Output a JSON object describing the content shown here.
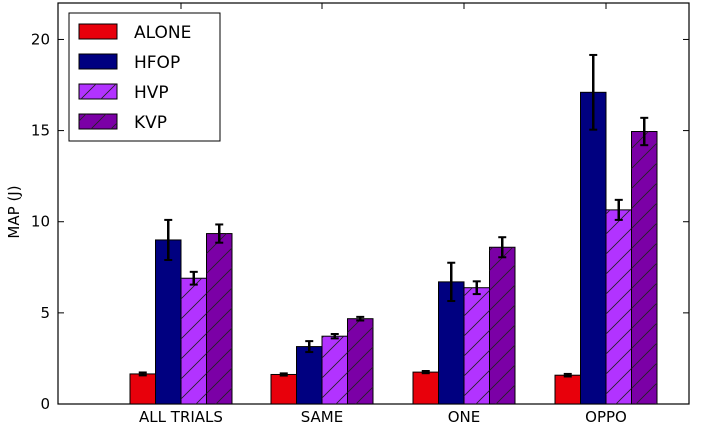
{
  "chart_data": {
    "type": "bar",
    "title": "",
    "xlabel": "",
    "ylabel": "MAP (J)",
    "categories": [
      "ALL TRIALS",
      "SAME",
      "ONE",
      "OPPO"
    ],
    "ylim": [
      0,
      22
    ],
    "yticks": [
      0,
      5,
      10,
      15,
      20
    ],
    "grid": false,
    "legend_position": "top-left",
    "series": [
      {
        "name": "ALONE",
        "values": [
          1.65,
          1.62,
          1.75,
          1.58
        ],
        "errors": [
          0.08,
          0.06,
          0.06,
          0.07
        ],
        "color": "#e8000b",
        "hatch": false
      },
      {
        "name": "HFOP",
        "values": [
          9.0,
          3.15,
          6.7,
          17.1
        ],
        "errors": [
          1.1,
          0.3,
          1.05,
          2.05
        ],
        "color": "#000080",
        "hatch": false
      },
      {
        "name": "HVP",
        "values": [
          6.9,
          3.72,
          6.38,
          10.65
        ],
        "errors": [
          0.35,
          0.12,
          0.35,
          0.55
        ],
        "color": "#b233ff",
        "hatch": true
      },
      {
        "name": "KVP",
        "values": [
          9.35,
          4.68,
          8.6,
          14.95
        ],
        "errors": [
          0.5,
          0.1,
          0.55,
          0.75
        ],
        "color": "#7b00a6",
        "hatch": true
      }
    ]
  }
}
